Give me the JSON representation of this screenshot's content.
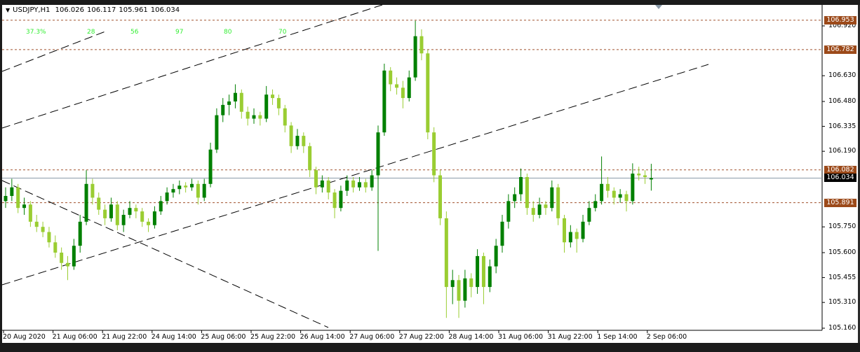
{
  "header": {
    "symbol": "USDJPY,H1",
    "open": "106.026",
    "high": "106.117",
    "low": "105.961",
    "close": "106.034",
    "menu_icon": "triangle-down-icon"
  },
  "fib_labels": [
    "37.3%",
    "28",
    "56",
    "97",
    "80",
    "70"
  ],
  "colors": {
    "bull": "#008000",
    "bear": "#9acd32",
    "level_line": "#a0522d",
    "level_label_bg": "#9c4a1a",
    "bid_line": "#8a9aa8",
    "trendline": "#000000",
    "fib_text": "#33ee33"
  },
  "chart_data": {
    "type": "candlestick",
    "symbol": "USDJPY",
    "timeframe": "H1",
    "ylim": [
      105.16,
      106.92
    ],
    "y_ticks": [
      "106.920",
      "106.630",
      "106.480",
      "106.335",
      "106.190",
      "105.750",
      "105.600",
      "105.455",
      "105.310",
      "105.160"
    ],
    "x_ticks": [
      "20 Aug 2020",
      "21 Aug 06:00",
      "21 Aug 22:00",
      "24 Aug 14:00",
      "25 Aug 06:00",
      "25 Aug 22:00",
      "26 Aug 14:00",
      "27 Aug 06:00",
      "27 Aug 22:00",
      "28 Aug 14:00",
      "31 Aug 06:00",
      "31 Aug 22:00",
      "1 Sep 14:00",
      "2 Sep 06:00"
    ],
    "levels": [
      "106.953",
      "106.782",
      "106.082",
      "105.891"
    ],
    "current_price": "106.034",
    "grid": false,
    "ohlc": [
      [
        105.9,
        105.98,
        105.86,
        105.93
      ],
      [
        105.93,
        106.03,
        105.9,
        105.98
      ],
      [
        105.98,
        106.0,
        105.83,
        105.86
      ],
      [
        105.86,
        105.92,
        105.82,
        105.88
      ],
      [
        105.88,
        105.9,
        105.75,
        105.78
      ],
      [
        105.78,
        105.82,
        105.72,
        105.75
      ],
      [
        105.75,
        105.78,
        105.69,
        105.72
      ],
      [
        105.72,
        105.75,
        105.63,
        105.66
      ],
      [
        105.66,
        105.7,
        105.57,
        105.6
      ],
      [
        105.6,
        105.63,
        105.5,
        105.54
      ],
      [
        105.54,
        105.58,
        105.44,
        105.52
      ],
      [
        105.52,
        105.68,
        105.5,
        105.64
      ],
      [
        105.64,
        105.82,
        105.6,
        105.78
      ],
      [
        105.78,
        106.08,
        105.76,
        106.0
      ],
      [
        106.0,
        106.03,
        105.88,
        105.92
      ],
      [
        105.92,
        105.95,
        105.82,
        105.85
      ],
      [
        105.85,
        105.88,
        105.76,
        105.8
      ],
      [
        105.8,
        105.92,
        105.78,
        105.88
      ],
      [
        105.88,
        105.9,
        105.73,
        105.76
      ],
      [
        105.76,
        105.85,
        105.72,
        105.82
      ],
      [
        105.82,
        105.9,
        105.8,
        105.86
      ],
      [
        105.86,
        105.88,
        105.8,
        105.84
      ],
      [
        105.84,
        105.86,
        105.75,
        105.78
      ],
      [
        105.78,
        105.8,
        105.72,
        105.76
      ],
      [
        105.76,
        105.87,
        105.74,
        105.84
      ],
      [
        105.84,
        105.93,
        105.82,
        105.9
      ],
      [
        105.9,
        105.98,
        105.88,
        105.95
      ],
      [
        105.95,
        106.0,
        105.92,
        105.97
      ],
      [
        105.97,
        106.02,
        105.94,
        105.99
      ],
      [
        105.99,
        106.01,
        105.95,
        105.98
      ],
      [
        105.98,
        106.03,
        105.96,
        106.0
      ],
      [
        106.0,
        106.02,
        105.88,
        105.92
      ],
      [
        105.92,
        106.03,
        105.9,
        106.0
      ],
      [
        106.0,
        106.24,
        105.98,
        106.2
      ],
      [
        106.2,
        106.44,
        106.18,
        106.4
      ],
      [
        106.4,
        106.5,
        106.36,
        106.46
      ],
      [
        106.46,
        106.52,
        106.4,
        106.48
      ],
      [
        106.48,
        106.58,
        106.44,
        106.53
      ],
      [
        106.53,
        106.55,
        106.38,
        106.42
      ],
      [
        106.42,
        106.45,
        106.34,
        106.38
      ],
      [
        106.38,
        106.44,
        106.35,
        106.4
      ],
      [
        106.4,
        106.42,
        106.34,
        106.38
      ],
      [
        106.38,
        106.57,
        106.36,
        106.52
      ],
      [
        106.52,
        106.55,
        106.46,
        106.5
      ],
      [
        106.5,
        106.52,
        106.4,
        106.44
      ],
      [
        106.44,
        106.46,
        106.3,
        106.34
      ],
      [
        106.34,
        106.36,
        106.18,
        106.22
      ],
      [
        106.22,
        106.32,
        106.2,
        106.28
      ],
      [
        106.28,
        106.3,
        106.18,
        106.22
      ],
      [
        106.22,
        106.24,
        106.04,
        106.08
      ],
      [
        106.08,
        106.1,
        105.94,
        105.98
      ],
      [
        105.98,
        106.05,
        105.95,
        106.02
      ],
      [
        106.02,
        106.04,
        105.91,
        105.95
      ],
      [
        105.95,
        105.97,
        105.8,
        105.86
      ],
      [
        105.86,
        105.99,
        105.84,
        105.96
      ],
      [
        105.96,
        106.05,
        105.93,
        106.02
      ],
      [
        106.02,
        106.04,
        105.95,
        105.98
      ],
      [
        105.98,
        106.04,
        105.96,
        106.01
      ],
      [
        106.01,
        106.03,
        105.95,
        105.98
      ],
      [
        105.98,
        106.08,
        105.96,
        106.05
      ],
      [
        106.05,
        106.34,
        105.61,
        106.3
      ],
      [
        106.3,
        106.7,
        106.28,
        106.66
      ],
      [
        106.66,
        106.68,
        106.54,
        106.58
      ],
      [
        106.58,
        106.62,
        106.52,
        106.56
      ],
      [
        106.56,
        106.6,
        106.44,
        106.5
      ],
      [
        106.5,
        106.66,
        106.48,
        106.62
      ],
      [
        106.62,
        106.95,
        106.6,
        106.86
      ],
      [
        106.86,
        106.9,
        106.72,
        106.76
      ],
      [
        106.76,
        106.78,
        106.26,
        106.3
      ],
      [
        106.3,
        106.33,
        106.01,
        106.05
      ],
      [
        106.05,
        106.08,
        105.76,
        105.8
      ],
      [
        105.8,
        105.84,
        105.22,
        105.4
      ],
      [
        105.4,
        105.5,
        105.3,
        105.44
      ],
      [
        105.44,
        105.47,
        105.22,
        105.32
      ],
      [
        105.32,
        105.5,
        105.28,
        105.45
      ],
      [
        105.45,
        105.48,
        105.34,
        105.4
      ],
      [
        105.4,
        105.62,
        105.36,
        105.58
      ],
      [
        105.58,
        105.6,
        105.3,
        105.4
      ],
      [
        105.4,
        105.56,
        105.37,
        105.52
      ],
      [
        105.52,
        105.68,
        105.48,
        105.64
      ],
      [
        105.64,
        105.82,
        105.6,
        105.78
      ],
      [
        105.78,
        105.94,
        105.74,
        105.9
      ],
      [
        105.9,
        105.98,
        105.86,
        105.94
      ],
      [
        105.94,
        106.09,
        105.9,
        106.04
      ],
      [
        106.04,
        106.06,
        105.82,
        105.86
      ],
      [
        105.86,
        105.9,
        105.78,
        105.82
      ],
      [
        105.82,
        105.92,
        105.8,
        105.88
      ],
      [
        105.88,
        105.9,
        105.82,
        105.86
      ],
      [
        105.86,
        106.02,
        105.84,
        105.98
      ],
      [
        105.98,
        106.0,
        105.76,
        105.8
      ],
      [
        105.8,
        105.82,
        105.6,
        105.66
      ],
      [
        105.66,
        105.76,
        105.63,
        105.72
      ],
      [
        105.72,
        105.74,
        105.6,
        105.68
      ],
      [
        105.68,
        105.82,
        105.66,
        105.78
      ],
      [
        105.78,
        105.9,
        105.76,
        105.86
      ],
      [
        105.86,
        105.94,
        105.84,
        105.9
      ],
      [
        105.9,
        106.16,
        105.88,
        106.0
      ],
      [
        106.0,
        106.04,
        105.92,
        105.96
      ],
      [
        105.96,
        105.98,
        105.88,
        105.92
      ],
      [
        105.92,
        105.97,
        105.89,
        105.94
      ],
      [
        105.94,
        105.96,
        105.84,
        105.9
      ],
      [
        105.9,
        106.12,
        105.88,
        106.06
      ],
      [
        106.06,
        106.1,
        106.02,
        106.05
      ],
      [
        106.05,
        106.08,
        106.0,
        106.04
      ],
      [
        106.026,
        106.117,
        105.961,
        106.034
      ]
    ]
  }
}
